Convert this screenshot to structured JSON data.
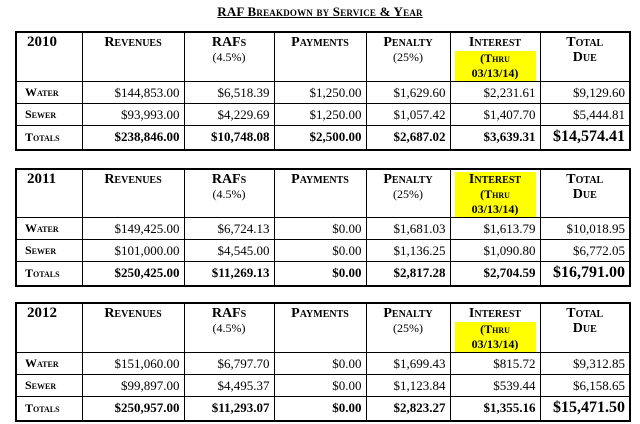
{
  "title": "RAF Breakdown by Service & Year",
  "columns": {
    "revenues": "Revenues",
    "rafs": "RAFs",
    "rafs_sub": "(4.5%)",
    "payments": "Payments",
    "penalty": "Penalty",
    "penalty_sub": "(25%)",
    "interest": "Interest",
    "interest_sub": "(Thru 03/13/14)",
    "total_due_1": "Total",
    "total_due_2": "Due"
  },
  "tables": [
    {
      "year": "2010",
      "rows": [
        {
          "label": "Water",
          "revenues": "$144,853.00",
          "rafs": "$6,518.39",
          "payments": "$1,250.00",
          "penalty": "$1,629.60",
          "interest": "$2,231.61",
          "total": "$9,129.60"
        },
        {
          "label": "Sewer",
          "revenues": "$93,993.00",
          "rafs": "$4,229.69",
          "payments": "$1,250.00",
          "penalty": "$1,057.42",
          "interest": "$1,407.70",
          "total": "$5,444.81"
        },
        {
          "label": "Totals",
          "revenues": "$238,846.00",
          "rafs": "$10,748.08",
          "payments": "$2,500.00",
          "penalty": "$2,687.02",
          "interest": "$3,639.31",
          "total": "$14,574.41"
        }
      ]
    },
    {
      "year": "2011",
      "rows": [
        {
          "label": "Water",
          "revenues": "$149,425.00",
          "rafs": "$6,724.13",
          "payments": "$0.00",
          "penalty": "$1,681.03",
          "interest": "$1,613.79",
          "total": "$10,018.95"
        },
        {
          "label": "Sewer",
          "revenues": "$101,000.00",
          "rafs": "$4,545.00",
          "payments": "$0.00",
          "penalty": "$1,136.25",
          "interest": "$1,090.80",
          "total": "$6,772.05"
        },
        {
          "label": "Totals",
          "revenues": "$250,425.00",
          "rafs": "$11,269.13",
          "payments": "$0.00",
          "penalty": "$2,817.28",
          "interest": "$2,704.59",
          "total": "$16,791.00"
        }
      ]
    },
    {
      "year": "2012",
      "rows": [
        {
          "label": "Water",
          "revenues": "$151,060.00",
          "rafs": "$6,797.70",
          "payments": "$0.00",
          "penalty": "$1,699.43",
          "interest": "$815.72",
          "total": "$9,312.85"
        },
        {
          "label": "Sewer",
          "revenues": "$99,897.00",
          "rafs": "$4,495.37",
          "payments": "$0.00",
          "penalty": "$1,123.84",
          "interest": "$539.44",
          "total": "$6,158.65"
        },
        {
          "label": "Totals",
          "revenues": "$250,957.00",
          "rafs": "$11,293.07",
          "payments": "$0.00",
          "penalty": "$2,823.27",
          "interest": "$1,355.16",
          "total": "$15,471.50"
        }
      ]
    }
  ]
}
